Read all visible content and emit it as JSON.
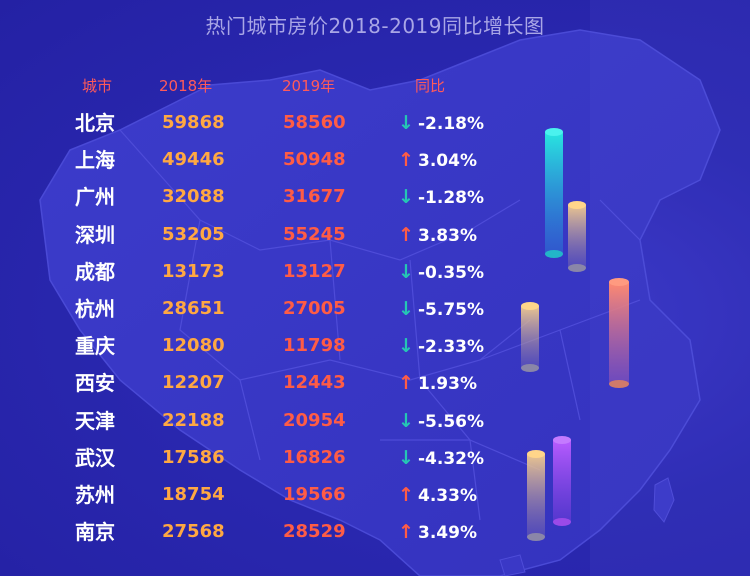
{
  "title": "热门城市房价2018-2019同比增长图",
  "columns": {
    "city": "城市",
    "y2018": "2018年",
    "y2019": "2019年",
    "change": "同比"
  },
  "chart_data": {
    "type": "table",
    "title": "热门城市房价2018-2019同比增长图",
    "columns": [
      "城市",
      "2018年",
      "2019年",
      "同比"
    ],
    "rows": [
      {
        "city": "北京",
        "v2018": "59868",
        "v2019": "58560",
        "direction": "down",
        "change": "-2.18%"
      },
      {
        "city": "上海",
        "v2018": "49446",
        "v2019": "50948",
        "direction": "up",
        "change": "3.04%"
      },
      {
        "city": "广州",
        "v2018": "32088",
        "v2019": "31677",
        "direction": "down",
        "change": "-1.28%"
      },
      {
        "city": "深圳",
        "v2018": "53205",
        "v2019": "55245",
        "direction": "up",
        "change": "3.83%"
      },
      {
        "city": "成都",
        "v2018": "13173",
        "v2019": "13127",
        "direction": "down",
        "change": "-0.35%"
      },
      {
        "city": "杭州",
        "v2018": "28651",
        "v2019": "27005",
        "direction": "down",
        "change": "-5.75%"
      },
      {
        "city": "重庆",
        "v2018": "12080",
        "v2019": "11798",
        "direction": "down",
        "change": "-2.33%"
      },
      {
        "city": "西安",
        "v2018": "12207",
        "v2019": "12443",
        "direction": "up",
        "change": "1.93%"
      },
      {
        "city": "天津",
        "v2018": "22188",
        "v2019": "20954",
        "direction": "down",
        "change": "-5.56%"
      },
      {
        "city": "武汉",
        "v2018": "17586",
        "v2019": "16826",
        "direction": "down",
        "change": "-4.32%"
      },
      {
        "city": "苏州",
        "v2018": "18754",
        "v2019": "19566",
        "direction": "up",
        "change": "4.33%"
      },
      {
        "city": "南京",
        "v2018": "27568",
        "v2019": "28529",
        "direction": "up",
        "change": "3.49%"
      }
    ]
  },
  "colors": {
    "background": "#2a28b0",
    "header": "#ff5a5a",
    "value_2018": "#ffa842",
    "value_2019": "#ff5c45",
    "arrow_down": "#25c6b4",
    "arrow_up": "#ff5c45"
  },
  "icons": {
    "down": "↓",
    "up": "↑",
    "down_name": "arrow-down-icon",
    "up_name": "arrow-up-icon"
  }
}
